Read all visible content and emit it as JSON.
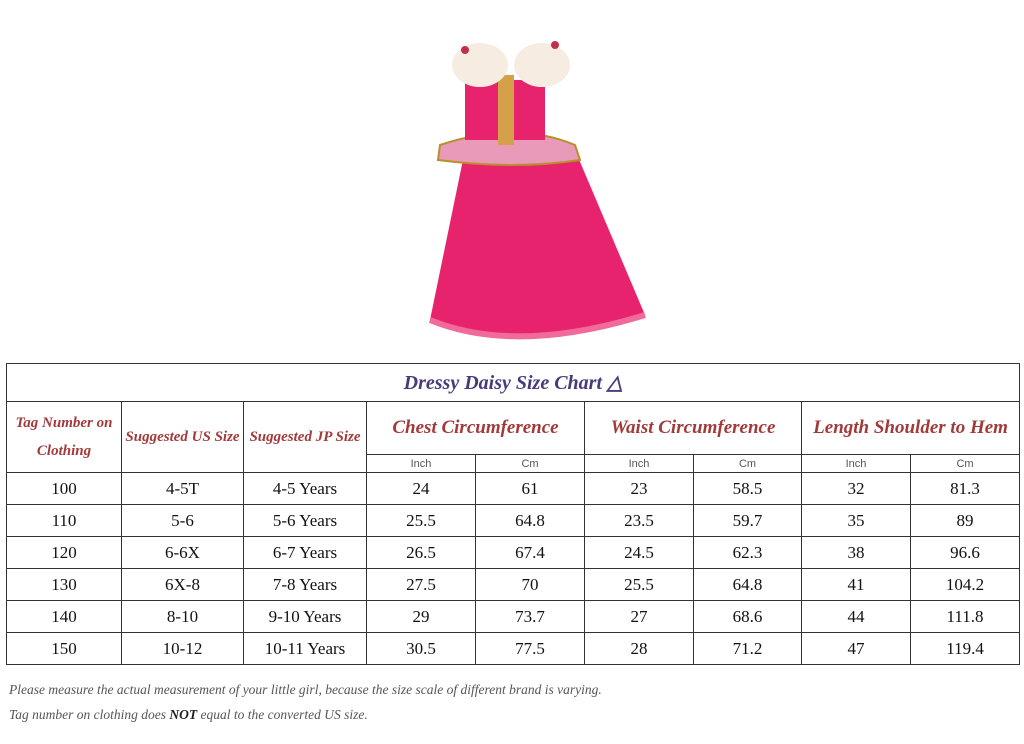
{
  "title": "Dressy Daisy Size Chart",
  "title_icon": "dress-icon",
  "headers": {
    "tag": "Tag Number on Clothing",
    "us": "Suggested US Size",
    "jp": "Suggested JP Size",
    "chest": "Chest Circumference",
    "waist": "Waist Circumference",
    "length": "Length Shoulder to Hem",
    "inch": "Inch",
    "cm": "Cm"
  },
  "rows": [
    [
      "100",
      "4-5T",
      "4-5 Years",
      "24",
      "61",
      "23",
      "58.5",
      "32",
      "81.3"
    ],
    [
      "110",
      "5-6",
      "5-6 Years",
      "25.5",
      "64.8",
      "23.5",
      "59.7",
      "35",
      "89"
    ],
    [
      "120",
      "6-6X",
      "6-7 Years",
      "26.5",
      "67.4",
      "24.5",
      "62.3",
      "38",
      "96.6"
    ],
    [
      "130",
      "6X-8",
      "7-8 Years",
      "27.5",
      "70",
      "25.5",
      "64.8",
      "41",
      "104.2"
    ],
    [
      "140",
      "8-10",
      "9-10 Years",
      "29",
      "73.7",
      "27",
      "68.6",
      "44",
      "111.8"
    ],
    [
      "150",
      "10-12",
      "10-11 Years",
      "30.5",
      "77.5",
      "28",
      "71.2",
      "47",
      "119.4"
    ]
  ],
  "notes": {
    "line1": "Please measure the actual measurement of your little girl, because the size scale of different brand is varying.",
    "line2_pre": "Tag number on clothing does ",
    "line2_bold": "NOT",
    "line2_post": " equal to the converted US size."
  },
  "colors": {
    "dress": "#e8236e",
    "title": "#4a3a7a",
    "header": "#a33a3a"
  }
}
